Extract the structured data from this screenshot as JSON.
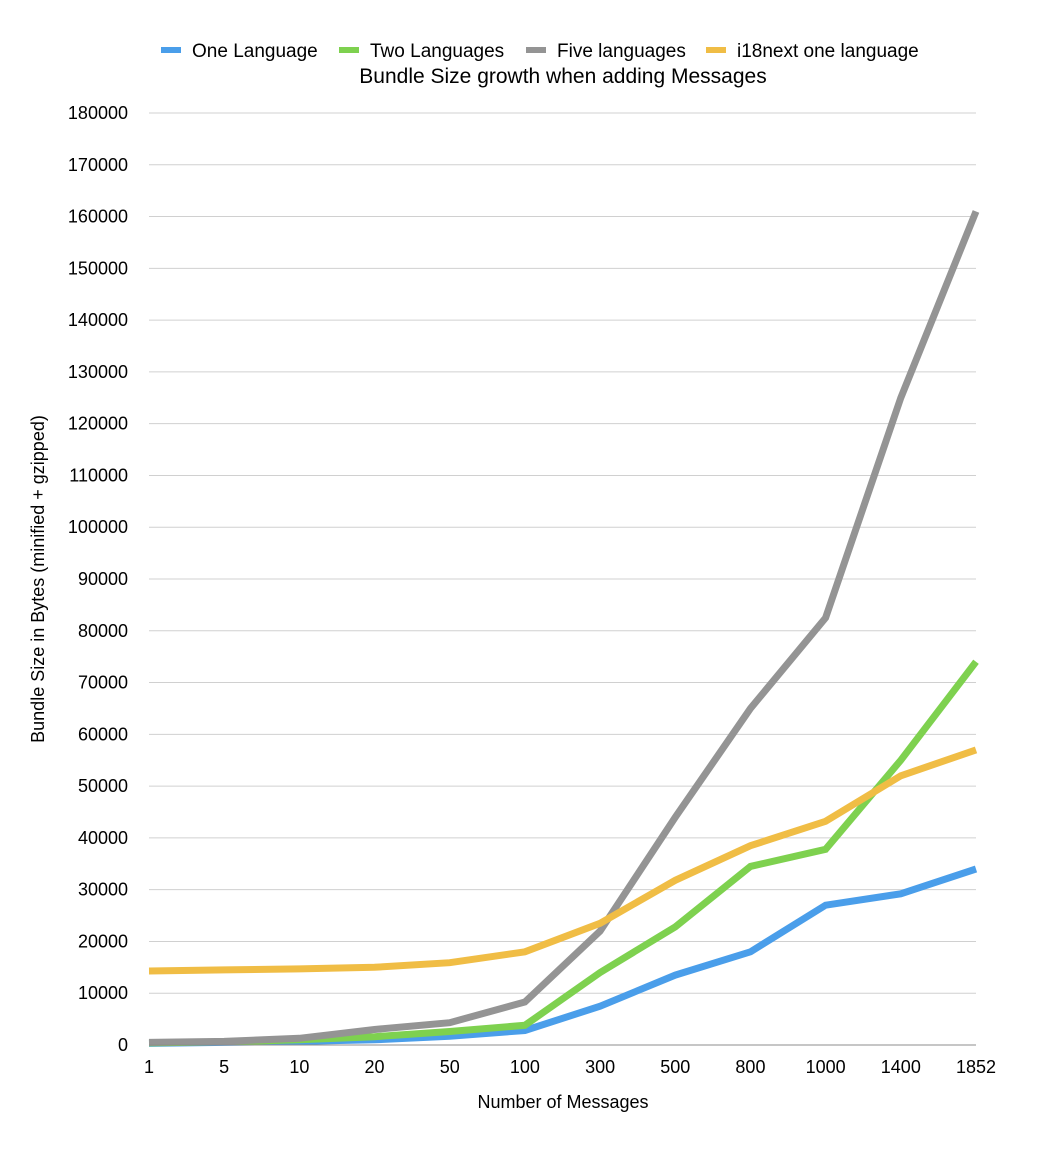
{
  "chart_data": {
    "type": "line",
    "title": "Bundle Size growth when adding Messages",
    "xlabel": "Number of Messages",
    "ylabel": "Bundle Size in Bytes (minified + gzipped)",
    "categories": [
      "1",
      "5",
      "10",
      "20",
      "50",
      "100",
      "300",
      "500",
      "800",
      "1000",
      "1400",
      "1852"
    ],
    "ylim": [
      0,
      180000
    ],
    "yticks": [
      0,
      10000,
      20000,
      30000,
      40000,
      50000,
      60000,
      70000,
      80000,
      90000,
      100000,
      110000,
      120000,
      130000,
      140000,
      150000,
      160000,
      170000,
      180000
    ],
    "grid": true,
    "legend_position": "top",
    "series": [
      {
        "name": "One Language",
        "color": "#4a9eea",
        "values": [
          300,
          500,
          700,
          1000,
          1700,
          2800,
          7500,
          13500,
          18000,
          27000,
          29200,
          34000
        ]
      },
      {
        "name": "Two Languages",
        "color": "#7ed14f",
        "values": [
          400,
          600,
          1000,
          1600,
          2600,
          3800,
          14000,
          22800,
          34500,
          37800,
          55000,
          74000
        ]
      },
      {
        "name": "Five languages",
        "color": "#949494",
        "values": [
          500,
          700,
          1300,
          3000,
          4300,
          8300,
          22000,
          44000,
          65000,
          82500,
          125000,
          161000
        ]
      },
      {
        "name": "i18next one language",
        "color": "#f0bd45",
        "values": [
          14300,
          14500,
          14700,
          15000,
          15900,
          18000,
          23500,
          31800,
          38500,
          43200,
          52000,
          57000
        ]
      }
    ]
  }
}
